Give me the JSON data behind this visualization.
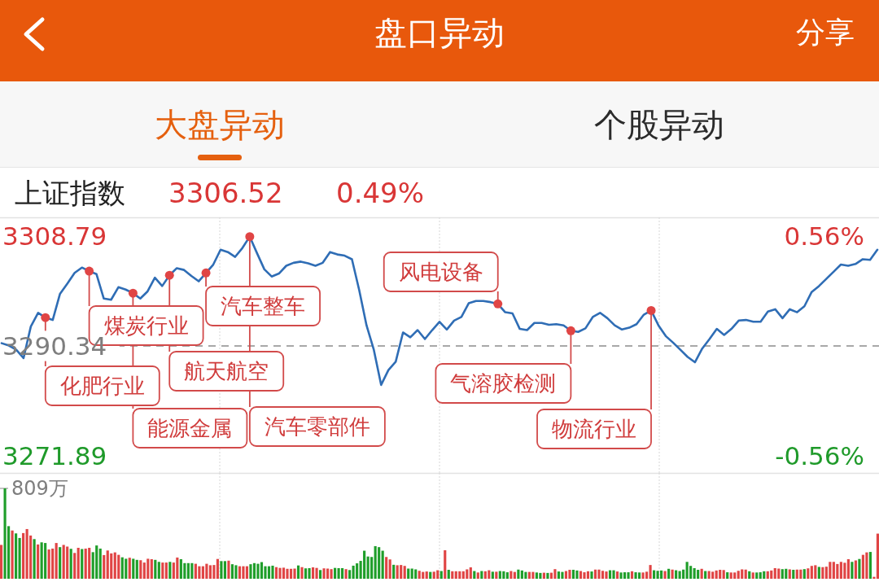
{
  "chart_data": [
    {
      "type": "line",
      "title": "上证指数",
      "annotations": [
        "盘口异动",
        "分享",
        "大盘异动",
        "个股异动",
        "3306.52",
        "0.49%",
        "化肥行业",
        "煤炭行业",
        "能源金属",
        "航天航空",
        "汽车整车",
        "汽车零部件",
        "风电设备",
        "气溶胶检测",
        "物流行业"
      ],
      "categories": [
        null,
        null,
        null,
        null,
        null,
        null,
        null,
        null,
        null,
        null,
        null,
        null,
        null,
        null,
        null,
        null,
        null,
        null,
        null,
        null,
        null,
        null,
        null,
        null,
        null,
        null,
        null,
        null,
        null,
        null,
        null,
        null,
        null,
        null,
        null,
        null,
        null,
        null,
        null,
        null,
        null,
        null,
        null,
        null,
        null,
        null,
        null,
        null,
        null,
        null,
        null,
        null,
        null,
        null,
        null,
        null,
        null,
        null,
        null,
        null,
        null,
        null,
        null,
        null,
        null,
        null,
        null,
        null,
        null,
        null,
        null,
        null,
        null,
        null,
        null,
        null,
        null,
        null,
        null,
        null,
        null,
        null,
        null,
        null,
        null,
        null,
        null,
        null,
        null,
        null,
        null,
        null,
        null,
        null,
        null,
        null,
        null,
        null,
        null,
        null,
        null,
        null,
        null,
        null,
        null,
        null,
        null,
        null,
        null,
        null,
        null,
        null,
        null,
        null,
        null,
        null,
        null,
        null,
        null,
        null,
        null
      ],
      "series": [
        {
          "color": "#2f6db5",
          "values": [
            3290.8,
            3290.4,
            3289.7,
            3288.3,
            3293.6,
            3295.9,
            3295.1,
            3294.7,
            3299.1,
            3300.8,
            3302.6,
            3303.5,
            3302.9,
            3302.4,
            3298.3,
            3298.1,
            3300.2,
            3299.8,
            3299.2,
            3298.3,
            3299.5,
            3301.8,
            3300.4,
            3302.2,
            3303.4,
            3303.1,
            3302.1,
            3301.2,
            3302.6,
            3304.0,
            3306.5,
            3306.1,
            3305.3,
            3306.8,
            3308.7,
            3305.9,
            3303.2,
            3302.0,
            3302.5,
            3303.8,
            3304.3,
            3304.5,
            3304.2,
            3303.8,
            3304.3,
            3306.1,
            3305.7,
            3305.5,
            3304.9,
            3299.7,
            3293.8,
            3289.7,
            3283.8,
            3286.3,
            3287.7,
            3292.6,
            3291.8,
            3293.0,
            3291.5,
            3293.0,
            3294.4,
            3293.1,
            3294.6,
            3295.2,
            3297.5,
            3297.9,
            3297.9,
            3297.7,
            3297.4,
            3296.0,
            3295.8,
            3293.2,
            3293.0,
            3294.2,
            3294.2,
            3293.9,
            3294.0,
            3293.8,
            3292.9,
            3292.7,
            3293.3,
            3295.2,
            3295.9,
            3295.0,
            3293.8,
            3293.1,
            3293.4,
            3294.0,
            3295.6,
            3296.3,
            3293.8,
            3292.0,
            3290.9,
            3289.7,
            3288.5,
            3287.6,
            3289.9,
            3291.5,
            3293.2,
            3292.2,
            3293.2,
            3294.6,
            3294.7,
            3294.4,
            3294.4,
            3296.1,
            3296.5,
            3295.0,
            3296.5,
            3296.0,
            3297.0,
            3299.4,
            3300.4,
            3301.6,
            3302.8,
            3304.0,
            3303.8,
            3304.1,
            3304.9,
            3304.8,
            3306.5
          ]
        },
        {
          "type": "scatter",
          "color": "#e04545",
          "marker": "circle",
          "values": [
            null,
            null,
            null,
            null,
            null,
            null,
            3295.1,
            null,
            null,
            null,
            null,
            null,
            3302.9,
            null,
            null,
            null,
            null,
            null,
            3299.2,
            null,
            null,
            null,
            null,
            3302.2,
            null,
            null,
            null,
            null,
            3302.6,
            null,
            null,
            null,
            null,
            null,
            3308.7,
            null,
            null,
            null,
            null,
            null,
            null,
            null,
            null,
            null,
            null,
            null,
            null,
            null,
            null,
            null,
            null,
            null,
            null,
            null,
            null,
            null,
            null,
            null,
            null,
            null,
            null,
            null,
            null,
            null,
            null,
            null,
            null,
            null,
            3297.4,
            null,
            null,
            null,
            null,
            null,
            null,
            null,
            null,
            null,
            3292.9,
            null,
            null,
            null,
            null,
            null,
            null,
            null,
            null,
            null,
            null,
            3296.3,
            null,
            null,
            null,
            null,
            null,
            null,
            null,
            null,
            null,
            null,
            null,
            null,
            null,
            null,
            null,
            null,
            null,
            null,
            null,
            null,
            null,
            null,
            null,
            null,
            null,
            null,
            null,
            null,
            null,
            null,
            null
          ]
        }
      ],
      "ylim": [
        3271.89,
        3308.79
      ],
      "yticks": [
        3308.79,
        3290.34,
        3271.89
      ],
      "y2lim": [
        -0.56,
        0.56
      ],
      "y2ticks": [
        {
          "value": 0.56,
          "label": "0.56%"
        },
        {
          "value": -0.56,
          "label": "-0.56%"
        }
      ],
      "ref_lines": [
        {
          "axis": "y",
          "value": 3290.34,
          "color": "#8c8c8c",
          "line_style": "dashed"
        }
      ],
      "grid": "x",
      "tick_labels": "y"
    },
    {
      "type": "bar",
      "categories": [
        null,
        null,
        null,
        null,
        null,
        null,
        null,
        null,
        null,
        null,
        null,
        null,
        null,
        null,
        null,
        null,
        null,
        null,
        null,
        null,
        null,
        null,
        null,
        null,
        null,
        null,
        null,
        null,
        null,
        null,
        null,
        null,
        null,
        null,
        null,
        null,
        null,
        null,
        null,
        null,
        null,
        null,
        null,
        null,
        null,
        null,
        null,
        null,
        null,
        null,
        null,
        null,
        null,
        null,
        null,
        null,
        null,
        null,
        null,
        null,
        null,
        null,
        null,
        null,
        null,
        null,
        null,
        null,
        null,
        null,
        null,
        null,
        null,
        null,
        null,
        null,
        null,
        null,
        null,
        null,
        null,
        null,
        null,
        null,
        null,
        null,
        null,
        null,
        null,
        null,
        null,
        null,
        null,
        null,
        null,
        null,
        null,
        null,
        null,
        null,
        null,
        null,
        null,
        null,
        null,
        null,
        null,
        null,
        null,
        null,
        null,
        null,
        null,
        null,
        null,
        null,
        null,
        null,
        null,
        null,
        null,
        null,
        null,
        null,
        null,
        null,
        null,
        null,
        null,
        null,
        null,
        null,
        null,
        null,
        null,
        null,
        null,
        null,
        null,
        null,
        null,
        null,
        null,
        null,
        null,
        null,
        null,
        null,
        null,
        null,
        null,
        null,
        null,
        null,
        null,
        null,
        null,
        null,
        null,
        null,
        null,
        null,
        null,
        null,
        null,
        null,
        null,
        null,
        null,
        null,
        null,
        null,
        null,
        null,
        null,
        null,
        null,
        null,
        null,
        null,
        null,
        null,
        null,
        null,
        null,
        null,
        null,
        null,
        null,
        null,
        null,
        null,
        null,
        null,
        null,
        null,
        null,
        null,
        null,
        null,
        null,
        null,
        null,
        null,
        null,
        null,
        null,
        null,
        null,
        null,
        null,
        null,
        null,
        null,
        null,
        null,
        null,
        null,
        null,
        null,
        null,
        null,
        null,
        null,
        null,
        null,
        null,
        null,
        null,
        null,
        null,
        null,
        null,
        null,
        null,
        null,
        null,
        null,
        null,
        null
      ],
      "values": [
        303,
        809,
        471,
        432,
        406,
        365,
        409,
        445,
        387,
        355,
        307,
        326,
        320,
        262,
        270,
        320,
        283,
        303,
        288,
        268,
        231,
        277,
        266,
        270,
        277,
        238,
        298,
        270,
        212,
        253,
        227,
        236,
        214,
        192,
        179,
        188,
        179,
        169,
        166,
        145,
        179,
        175,
        169,
        151,
        145,
        145,
        151,
        145,
        190,
        175,
        140,
        140,
        140,
        134,
        112,
        112,
        134,
        121,
        123,
        177,
        158,
        158,
        162,
        130,
        121,
        112,
        112,
        112,
        130,
        140,
        134,
        149,
        112,
        112,
        117,
        104,
        97,
        99,
        89,
        89,
        91,
        119,
        104,
        93,
        95,
        102,
        97,
        78,
        93,
        91,
        86,
        97,
        95,
        95,
        86,
        78,
        117,
        138,
        160,
        251,
        199,
        195,
        292,
        283,
        251,
        195,
        173,
        125,
        121,
        123,
        115,
        91,
        91,
        84,
        71,
        61,
        65,
        61,
        63,
        76,
        69,
        255,
        80,
        67,
        67,
        67,
        67,
        84,
        102,
        69,
        56,
        69,
        67,
        76,
        63,
        63,
        69,
        67,
        58,
        69,
        61,
        82,
        74,
        61,
        61,
        61,
        56,
        52,
        54,
        52,
        54,
        86,
        65,
        61,
        69,
        80,
        80,
        74,
        69,
        58,
        67,
        65,
        82,
        82,
        71,
        65,
        76,
        76,
        65,
        56,
        58,
        58,
        67,
        58,
        56,
        56,
        63,
        123,
        76,
        71,
        74,
        69,
        89,
        82,
        76,
        69,
        82,
        151,
        115,
        95,
        80,
        89,
        69,
        69,
        63,
        74,
        80,
        78,
        58,
        56,
        56,
        71,
        84,
        82,
        67,
        56,
        56,
        58,
        67,
        67,
        74,
        95,
        91,
        86,
        89,
        84,
        80,
        82,
        82,
        86,
        93,
        115,
        121,
        106,
        104,
        108,
        151,
        151,
        132,
        151,
        143,
        175,
        151,
        164,
        177,
        214,
        236,
        240,
        17,
        404
      ],
      "colors": [
        "#e04444",
        "#1f9e2a",
        "#1f9e2a",
        "#e04444",
        "#1f9e2a",
        "#1f9e2a",
        "#e04444",
        "#e04444",
        "#e04444",
        "#1f9e2a",
        "#e04444",
        "#1f9e2a",
        "#1f9e2a",
        "#e04444",
        "#e04444",
        "#e04444",
        "#1f9e2a",
        "#e04444",
        "#e04444",
        "#1f9e2a",
        "#e04444",
        "#e04444",
        "#1f9e2a",
        "#e04444",
        "#e04444",
        "#1f9e2a",
        "#1f9e2a",
        "#1f9e2a",
        "#e04444",
        "#e04444",
        "#e04444",
        "#e04444",
        "#e04444",
        "#1f9e2a",
        "#1f9e2a",
        "#e04444",
        "#1f9e2a",
        "#1f9e2a",
        "#e04444",
        "#e04444",
        "#e04444",
        "#e04444",
        "#1f9e2a",
        "#1f9e2a",
        "#e04444",
        "#e04444",
        "#1f9e2a",
        "#e04444",
        "#e04444",
        "#1f9e2a",
        "#1f9e2a",
        "#1f9e2a",
        "#1f9e2a",
        "#e04444",
        "#e04444",
        "#e04444",
        "#e04444",
        "#e04444",
        "#e04444",
        "#e04444",
        "#1f9e2a",
        "#1f9e2a",
        "#e04444",
        "#1f9e2a",
        "#1f9e2a",
        "#e04444",
        "#e04444",
        "#e04444",
        "#1f9e2a",
        "#1f9e2a",
        "#1f9e2a",
        "#1f9e2a",
        "#1f9e2a",
        "#1f9e2a",
        "#1f9e2a",
        "#e04444",
        "#e04444",
        "#e04444",
        "#e04444",
        "#e04444",
        "#e04444",
        "#1f9e2a",
        "#e04444",
        "#1f9e2a",
        "#1f9e2a",
        "#e04444",
        "#e04444",
        "#1f9e2a",
        "#e04444",
        "#e04444",
        "#e04444",
        "#1f9e2a",
        "#1f9e2a",
        "#1f9e2a",
        "#e04444",
        "#1f9e2a",
        "#1f9e2a",
        "#1f9e2a",
        "#1f9e2a",
        "#1f9e2a",
        "#1f9e2a",
        "#1f9e2a",
        "#1f9e2a",
        "#1f9e2a",
        "#1f9e2a",
        "#e04444",
        "#e04444",
        "#1f9e2a",
        "#e04444",
        "#e04444",
        "#e04444",
        "#1f9e2a",
        "#1f9e2a",
        "#1f9e2a",
        "#e04444",
        "#e04444",
        "#e04444",
        "#1f9e2a",
        "#e04444",
        "#e04444",
        "#1f9e2a",
        "#e04444",
        "#1f9e2a",
        "#e04444",
        "#e04444",
        "#e04444",
        "#e04444",
        "#e04444",
        "#e04444",
        "#1f9e2a",
        "#e04444",
        "#1f9e2a",
        "#e04444",
        "#e04444",
        "#1f9e2a",
        "#e04444",
        "#1f9e2a",
        "#1f9e2a",
        "#1f9e2a",
        "#e04444",
        "#e04444",
        "#1f9e2a",
        "#1f9e2a",
        "#1f9e2a",
        "#e04444",
        "#e04444",
        "#1f9e2a",
        "#1f9e2a",
        "#e04444",
        "#1f9e2a",
        "#e04444",
        "#e04444",
        "#1f9e2a",
        "#1f9e2a",
        "#e04444",
        "#e04444",
        "#1f9e2a",
        "#1f9e2a",
        "#e04444",
        "#e04444",
        "#e04444",
        "#1f9e2a",
        "#e04444",
        "#e04444",
        "#e04444",
        "#e04444",
        "#1f9e2a",
        "#1f9e2a",
        "#e04444",
        "#1f9e2a",
        "#1f9e2a",
        "#1f9e2a",
        "#e04444",
        "#1f9e2a",
        "#1f9e2a",
        "#e04444",
        "#e04444",
        "#e04444",
        "#1f9e2a",
        "#1f9e2a",
        "#1f9e2a",
        "#e04444",
        "#1f9e2a",
        "#e04444",
        "#1f9e2a",
        "#1f9e2a",
        "#1f9e2a",
        "#1f9e2a",
        "#1f9e2a",
        "#1f9e2a",
        "#1f9e2a",
        "#e04444",
        "#1f9e2a",
        "#e04444",
        "#e04444",
        "#e04444",
        "#e04444",
        "#e04444",
        "#1f9e2a",
        "#e04444",
        "#e04444",
        "#e04444",
        "#e04444",
        "#e04444",
        "#1f9e2a",
        "#e04444",
        "#1f9e2a",
        "#1f9e2a",
        "#1f9e2a",
        "#e04444",
        "#e04444",
        "#e04444",
        "#e04444",
        "#1f9e2a",
        "#1f9e2a",
        "#e04444",
        "#1f9e2a",
        "#e04444",
        "#e04444",
        "#1f9e2a",
        "#e04444",
        "#e04444",
        "#e04444",
        "#1f9e2a",
        "#e04444",
        "#e04444",
        "#e04444",
        "#e04444",
        "#e04444",
        "#e04444",
        "#e04444",
        "#e04444",
        "#1f9e2a",
        "#e04444",
        "#1f9e2a",
        "#e04444",
        "#e04444",
        "#1f9e2a",
        "#e04444",
        "#e04444"
      ],
      "ylim": [
        0,
        809
      ],
      "yticks": [
        {
          "value": 809,
          "label": "809万"
        }
      ],
      "grid": "x",
      "tick_labels": "y"
    }
  ]
}
